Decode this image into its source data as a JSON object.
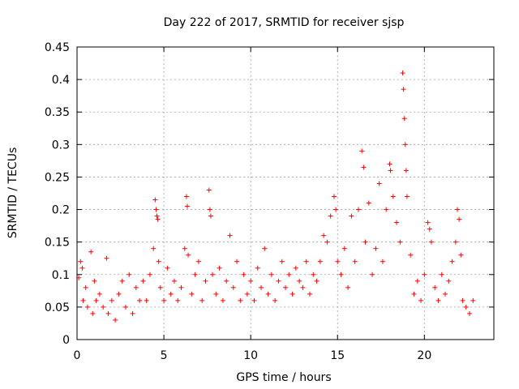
{
  "chart_data": {
    "type": "scatter",
    "title": "Day 222 of 2017, SRMTID for receiver sjsp",
    "xlabel": "GPS time / hours",
    "ylabel": "SRMTID / TECUs",
    "xlim": [
      0,
      24
    ],
    "ylim": [
      0,
      0.45
    ],
    "xticks": [
      0,
      5,
      10,
      15,
      20
    ],
    "xtick_labels": [
      "0",
      "5",
      "10",
      "15",
      "20"
    ],
    "yticks": [
      0,
      0.05,
      0.1,
      0.15,
      0.2,
      0.25,
      0.3,
      0.35,
      0.4,
      0.45
    ],
    "ytick_labels": [
      "0",
      "0.05",
      "0.1",
      "0.15",
      "0.2",
      "0.25",
      "0.3",
      "0.35",
      "0.4",
      "0.45"
    ],
    "grid": true,
    "marker": "+",
    "color": "#ff0000",
    "series": [
      {
        "name": "SRMTID",
        "points": [
          [
            0.1,
            0.095
          ],
          [
            0.2,
            0.12
          ],
          [
            0.3,
            0.11
          ],
          [
            0.35,
            0.06
          ],
          [
            0.5,
            0.08
          ],
          [
            0.6,
            0.05
          ],
          [
            0.8,
            0.135
          ],
          [
            0.9,
            0.04
          ],
          [
            1.0,
            0.09
          ],
          [
            1.1,
            0.06
          ],
          [
            1.3,
            0.07
          ],
          [
            1.5,
            0.05
          ],
          [
            1.7,
            0.125
          ],
          [
            1.8,
            0.04
          ],
          [
            2.0,
            0.06
          ],
          [
            2.2,
            0.03
          ],
          [
            2.4,
            0.07
          ],
          [
            2.6,
            0.09
          ],
          [
            2.8,
            0.05
          ],
          [
            3.0,
            0.1
          ],
          [
            3.2,
            0.04
          ],
          [
            3.4,
            0.08
          ],
          [
            3.6,
            0.06
          ],
          [
            3.8,
            0.09
          ],
          [
            4.0,
            0.06
          ],
          [
            4.2,
            0.1
          ],
          [
            4.4,
            0.14
          ],
          [
            4.5,
            0.215
          ],
          [
            4.55,
            0.2
          ],
          [
            4.6,
            0.19
          ],
          [
            4.65,
            0.185
          ],
          [
            4.7,
            0.12
          ],
          [
            4.8,
            0.08
          ],
          [
            5.0,
            0.06
          ],
          [
            5.2,
            0.11
          ],
          [
            5.4,
            0.07
          ],
          [
            5.6,
            0.09
          ],
          [
            5.8,
            0.06
          ],
          [
            6.0,
            0.08
          ],
          [
            6.2,
            0.14
          ],
          [
            6.3,
            0.22
          ],
          [
            6.35,
            0.205
          ],
          [
            6.4,
            0.13
          ],
          [
            6.6,
            0.07
          ],
          [
            6.8,
            0.1
          ],
          [
            7.0,
            0.12
          ],
          [
            7.2,
            0.06
          ],
          [
            7.4,
            0.09
          ],
          [
            7.6,
            0.23
          ],
          [
            7.65,
            0.2
          ],
          [
            7.7,
            0.19
          ],
          [
            7.8,
            0.1
          ],
          [
            8.0,
            0.07
          ],
          [
            8.2,
            0.11
          ],
          [
            8.4,
            0.06
          ],
          [
            8.6,
            0.09
          ],
          [
            8.8,
            0.16
          ],
          [
            9.0,
            0.08
          ],
          [
            9.2,
            0.12
          ],
          [
            9.4,
            0.06
          ],
          [
            9.6,
            0.1
          ],
          [
            9.8,
            0.07
          ],
          [
            10.0,
            0.09
          ],
          [
            10.2,
            0.06
          ],
          [
            10.4,
            0.11
          ],
          [
            10.6,
            0.08
          ],
          [
            10.8,
            0.14
          ],
          [
            11.0,
            0.07
          ],
          [
            11.2,
            0.1
          ],
          [
            11.4,
            0.06
          ],
          [
            11.6,
            0.09
          ],
          [
            11.8,
            0.12
          ],
          [
            12.0,
            0.08
          ],
          [
            12.2,
            0.1
          ],
          [
            12.4,
            0.07
          ],
          [
            12.6,
            0.11
          ],
          [
            12.8,
            0.09
          ],
          [
            13.0,
            0.08
          ],
          [
            13.2,
            0.12
          ],
          [
            13.4,
            0.07
          ],
          [
            13.6,
            0.1
          ],
          [
            13.8,
            0.09
          ],
          [
            14.0,
            0.12
          ],
          [
            14.2,
            0.16
          ],
          [
            14.4,
            0.15
          ],
          [
            14.6,
            0.19
          ],
          [
            14.8,
            0.22
          ],
          [
            14.9,
            0.2
          ],
          [
            15.0,
            0.12
          ],
          [
            15.2,
            0.1
          ],
          [
            15.4,
            0.14
          ],
          [
            15.6,
            0.08
          ],
          [
            15.8,
            0.19
          ],
          [
            16.0,
            0.12
          ],
          [
            16.2,
            0.2
          ],
          [
            16.4,
            0.29
          ],
          [
            16.5,
            0.265
          ],
          [
            16.6,
            0.15
          ],
          [
            16.8,
            0.21
          ],
          [
            17.0,
            0.1
          ],
          [
            17.2,
            0.14
          ],
          [
            17.4,
            0.24
          ],
          [
            17.6,
            0.12
          ],
          [
            17.8,
            0.2
          ],
          [
            18.0,
            0.27
          ],
          [
            18.05,
            0.26
          ],
          [
            18.2,
            0.22
          ],
          [
            18.4,
            0.18
          ],
          [
            18.6,
            0.15
          ],
          [
            18.75,
            0.41
          ],
          [
            18.8,
            0.385
          ],
          [
            18.85,
            0.34
          ],
          [
            18.9,
            0.3
          ],
          [
            18.95,
            0.26
          ],
          [
            19.0,
            0.22
          ],
          [
            19.2,
            0.13
          ],
          [
            19.4,
            0.07
          ],
          [
            19.6,
            0.09
          ],
          [
            19.8,
            0.06
          ],
          [
            20.0,
            0.1
          ],
          [
            20.2,
            0.18
          ],
          [
            20.3,
            0.17
          ],
          [
            20.4,
            0.15
          ],
          [
            20.6,
            0.08
          ],
          [
            20.8,
            0.06
          ],
          [
            21.0,
            0.1
          ],
          [
            21.2,
            0.07
          ],
          [
            21.4,
            0.09
          ],
          [
            21.6,
            0.12
          ],
          [
            21.8,
            0.15
          ],
          [
            21.9,
            0.2
          ],
          [
            22.0,
            0.185
          ],
          [
            22.1,
            0.13
          ],
          [
            22.2,
            0.06
          ],
          [
            22.4,
            0.05
          ],
          [
            22.6,
            0.04
          ],
          [
            22.8,
            0.06
          ]
        ]
      }
    ]
  }
}
